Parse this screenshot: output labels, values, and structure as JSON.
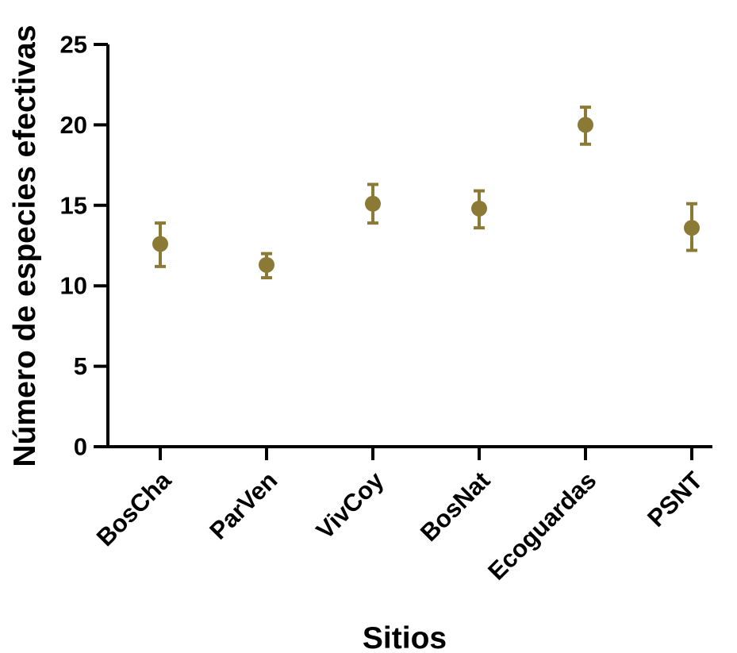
{
  "chart_data": {
    "type": "scatter",
    "xlabel": "Sitios",
    "ylabel": "Número de especies efectivas",
    "ylim": [
      0,
      25
    ],
    "yticks": [
      "0",
      "5",
      "10",
      "15",
      "20",
      "25"
    ],
    "categories": [
      "BosCha",
      "ParVen",
      "VivCoy",
      "BosNat",
      "Ecoguardas",
      "PSNT"
    ],
    "series": [
      {
        "values": [
          12.6,
          11.3,
          15.1,
          14.8,
          20.0,
          13.6
        ],
        "err_low": [
          11.2,
          10.5,
          13.9,
          13.6,
          18.8,
          12.2
        ],
        "err_high": [
          13.9,
          12.0,
          16.3,
          15.9,
          21.1,
          15.1
        ]
      }
    ],
    "marker_color": "#8b7a35",
    "grid": false,
    "legend": "none"
  }
}
